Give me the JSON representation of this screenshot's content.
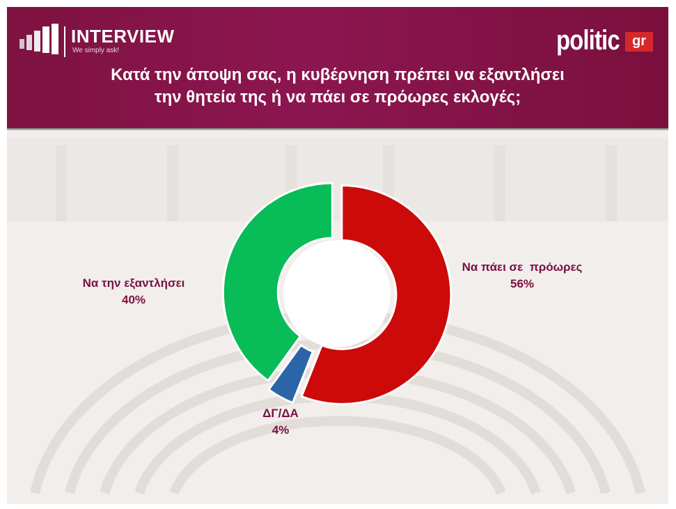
{
  "header": {
    "brand_name": "INTERVIEW",
    "brand_tagline": "We simply ask!",
    "publisher_word": "politic",
    "publisher_badge": "gr",
    "question_line1": "Κατά την άποψη σας, η κυβέρνηση πρέπει να εξαντλήσει",
    "question_line2": "την θητεία της ή να πάει σε πρόωρες εκλογές;"
  },
  "colors": {
    "header": "#8a1450",
    "label_text": "#7a1040",
    "slice_red": "#cc0a0a",
    "slice_green": "#08bc58",
    "slice_blue": "#2b65a8",
    "publisher_badge": "#d6282b"
  },
  "chart_data": {
    "type": "pie",
    "variant": "donut",
    "title": "Κατά την άποψη σας, η κυβέρνηση πρέπει να εξαντλήσει την θητεία της ή να πάει σε πρόωρες εκλογές;",
    "categories": [
      "Να πάει σε  πρόωρες",
      "ΔΓ/ΔΑ",
      "Να την εξαντλήσει"
    ],
    "values": [
      56,
      4,
      40
    ],
    "value_labels": [
      "56%",
      "4%",
      "40%"
    ],
    "unit": "%",
    "colors": [
      "#cc0a0a",
      "#2b65a8",
      "#08bc58"
    ],
    "start_angle_deg": 0,
    "direction": "clockwise",
    "legend": "none"
  }
}
